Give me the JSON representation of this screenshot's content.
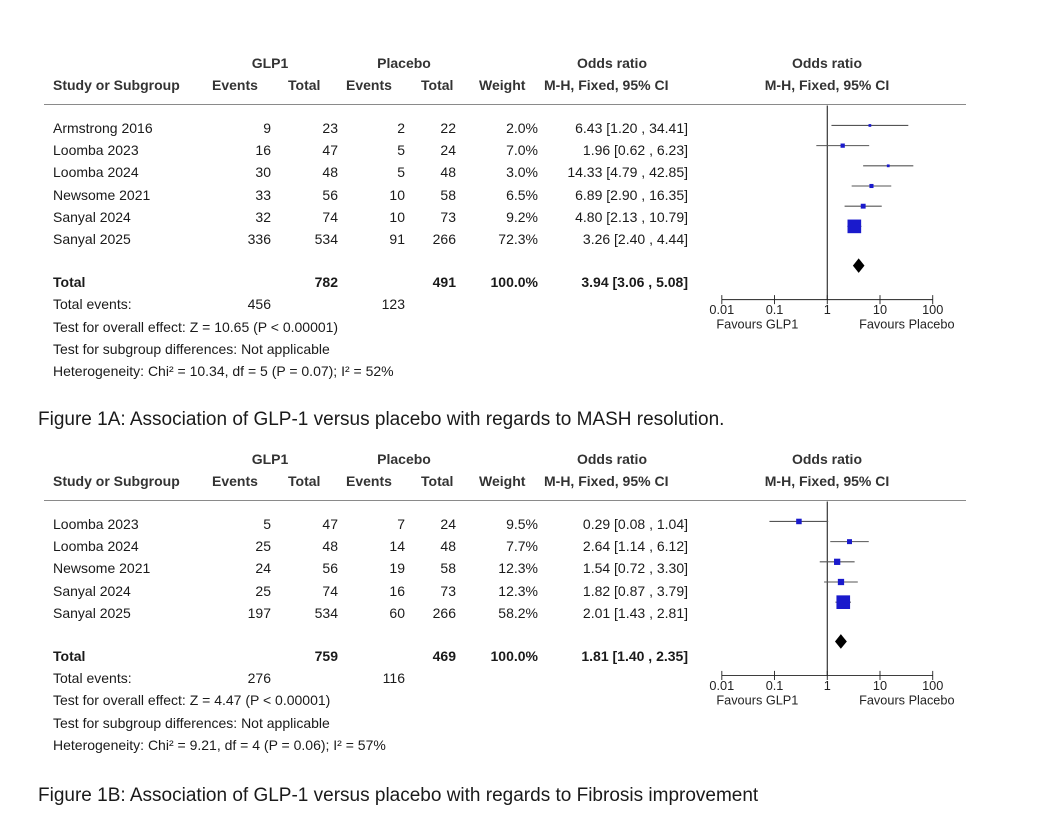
{
  "chart_data": [
    {
      "type": "forest",
      "headers": {
        "study": "Study or Subgroup",
        "group1": "GLP1",
        "group2": "Placebo",
        "events": "Events",
        "total": "Total",
        "weight": "Weight",
        "or_title": "Odds ratio",
        "or_method": "M-H, Fixed, 95% CI"
      },
      "studies": [
        {
          "name": "Armstrong 2016",
          "e1": "9",
          "n1": "23",
          "e2": "2",
          "n2": "22",
          "weight": "2.0%",
          "ci_text": "6.43 [1.20 , 34.41]",
          "or": 6.43,
          "lo": 1.2,
          "hi": 34.41,
          "w": 2.0
        },
        {
          "name": "Loomba 2023",
          "e1": "16",
          "n1": "47",
          "e2": "5",
          "n2": "24",
          "weight": "7.0%",
          "ci_text": "1.96 [0.62 , 6.23]",
          "or": 1.96,
          "lo": 0.62,
          "hi": 6.23,
          "w": 7.0
        },
        {
          "name": "Loomba 2024",
          "e1": "30",
          "n1": "48",
          "e2": "5",
          "n2": "48",
          "weight": "3.0%",
          "ci_text": "14.33 [4.79 , 42.85]",
          "or": 14.33,
          "lo": 4.79,
          "hi": 42.85,
          "w": 3.0
        },
        {
          "name": "Newsome 2021",
          "e1": "33",
          "n1": "56",
          "e2": "10",
          "n2": "58",
          "weight": "6.5%",
          "ci_text": "6.89 [2.90 , 16.35]",
          "or": 6.89,
          "lo": 2.9,
          "hi": 16.35,
          "w": 6.5
        },
        {
          "name": "Sanyal 2024",
          "e1": "32",
          "n1": "74",
          "e2": "10",
          "n2": "73",
          "weight": "9.2%",
          "ci_text": "4.80 [2.13 , 10.79]",
          "or": 4.8,
          "lo": 2.13,
          "hi": 10.79,
          "w": 9.2
        },
        {
          "name": "Sanyal 2025",
          "e1": "336",
          "n1": "534",
          "e2": "91",
          "n2": "266",
          "weight": "72.3%",
          "ci_text": "3.26 [2.40 , 4.44]",
          "or": 3.26,
          "lo": 2.4,
          "hi": 4.44,
          "w": 72.3
        }
      ],
      "total": {
        "label": "Total",
        "n1": "782",
        "n2": "491",
        "weight": "100.0%",
        "ci_text": "3.94 [3.06 , 5.08]",
        "or": 3.94,
        "lo": 3.06,
        "hi": 5.08
      },
      "total_events": {
        "label": "Total events:",
        "e1": "456",
        "e2": "123"
      },
      "notes": [
        "Test for overall effect: Z = 10.65 (P < 0.00001)",
        "Test for subgroup differences: Not applicable",
        "Heterogeneity: Chi² = 10.34, df = 5 (P = 0.07); I² = 52%"
      ],
      "axis": {
        "scale": "log",
        "range": [
          0.01,
          100
        ],
        "ticks": [
          "0.01",
          "0.1",
          "1",
          "10",
          "100"
        ],
        "left_label": "Favours GLP1",
        "right_label": "Favours Placebo"
      },
      "caption": "Figure 1A: Association of GLP-1 versus placebo with regards to MASH resolution.",
      "colors": {
        "marker": "#1a1acc",
        "diamond": "#000000",
        "ci_line": "#555555"
      }
    },
    {
      "type": "forest",
      "headers": {
        "study": "Study or Subgroup",
        "group1": "GLP1",
        "group2": "Placebo",
        "events": "Events",
        "total": "Total",
        "weight": "Weight",
        "or_title": "Odds ratio",
        "or_method": "M-H, Fixed, 95% CI"
      },
      "studies": [
        {
          "name": "Loomba 2023",
          "e1": "5",
          "n1": "47",
          "e2": "7",
          "n2": "24",
          "weight": "9.5%",
          "ci_text": "0.29 [0.08 , 1.04]",
          "or": 0.29,
          "lo": 0.08,
          "hi": 1.04,
          "w": 9.5
        },
        {
          "name": "Loomba 2024",
          "e1": "25",
          "n1": "48",
          "e2": "14",
          "n2": "48",
          "weight": "7.7%",
          "ci_text": "2.64 [1.14 , 6.12]",
          "or": 2.64,
          "lo": 1.14,
          "hi": 6.12,
          "w": 7.7
        },
        {
          "name": "Newsome 2021",
          "e1": "24",
          "n1": "56",
          "e2": "19",
          "n2": "58",
          "weight": "12.3%",
          "ci_text": "1.54 [0.72 , 3.30]",
          "or": 1.54,
          "lo": 0.72,
          "hi": 3.3,
          "w": 12.3
        },
        {
          "name": "Sanyal 2024",
          "e1": "25",
          "n1": "74",
          "e2": "16",
          "n2": "73",
          "weight": "12.3%",
          "ci_text": "1.82 [0.87 , 3.79]",
          "or": 1.82,
          "lo": 0.87,
          "hi": 3.79,
          "w": 12.3
        },
        {
          "name": "Sanyal 2025",
          "e1": "197",
          "n1": "534",
          "e2": "60",
          "n2": "266",
          "weight": "58.2%",
          "ci_text": "2.01 [1.43 , 2.81]",
          "or": 2.01,
          "lo": 1.43,
          "hi": 2.81,
          "w": 58.2
        }
      ],
      "total": {
        "label": "Total",
        "n1": "759",
        "n2": "469",
        "weight": "100.0%",
        "ci_text": "1.81 [1.40 , 2.35]",
        "or": 1.81,
        "lo": 1.4,
        "hi": 2.35
      },
      "total_events": {
        "label": "Total events:",
        "e1": "276",
        "e2": "116"
      },
      "notes": [
        "Test for overall effect: Z = 4.47 (P < 0.00001)",
        "Test for subgroup differences: Not applicable",
        "Heterogeneity: Chi² = 9.21, df = 4 (P = 0.06); I² = 57%"
      ],
      "axis": {
        "scale": "log",
        "range": [
          0.01,
          100
        ],
        "ticks": [
          "0.01",
          "0.1",
          "1",
          "10",
          "100"
        ],
        "left_label": "Favours GLP1",
        "right_label": "Favours Placebo"
      },
      "caption": "Figure 1B: Association of GLP-1 versus placebo with regards to Fibrosis improvement",
      "colors": {
        "marker": "#1a1acc",
        "diamond": "#000000",
        "ci_line": "#555555"
      }
    }
  ]
}
